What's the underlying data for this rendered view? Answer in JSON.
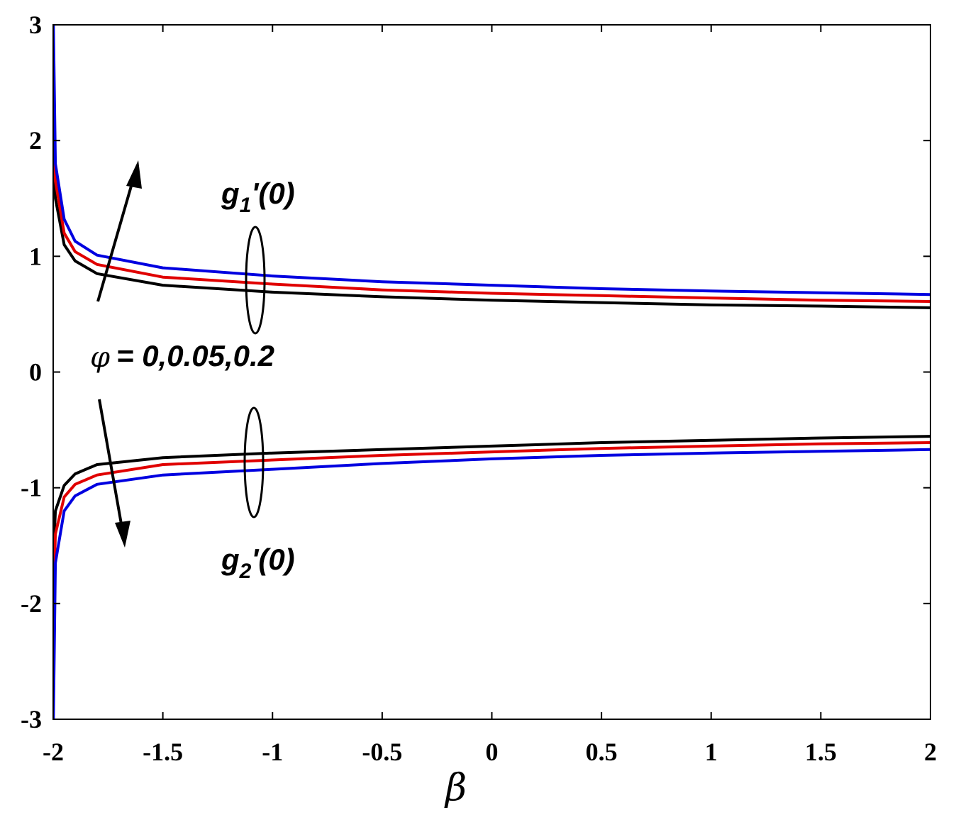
{
  "chart_data": {
    "type": "line",
    "xlabel": "β",
    "ylabel": "",
    "xlim": [
      -2,
      2
    ],
    "ylim": [
      -3,
      3
    ],
    "x_ticks": [
      "-2",
      "-1.5",
      "-1",
      "-0.5",
      "0",
      "0.5",
      "1",
      "1.5",
      "2"
    ],
    "y_ticks": [
      "-3",
      "-2",
      "-1",
      "0",
      "1",
      "2",
      "3"
    ],
    "grid": false,
    "legend": "none",
    "annotations": {
      "upper_group": "g1'(0)",
      "lower_group": "g2'(0)",
      "phi_symbol": "φ",
      "phi_values": "= 0,0.05,0.2"
    },
    "series": [
      {
        "color": "#000000",
        "x": [
          -1.999,
          -1.99,
          -1.95,
          -1.9,
          -1.8,
          -1.5,
          -1,
          -0.5,
          0,
          0.5,
          1,
          1.5,
          2
        ],
        "y": [
          2.4,
          1.5,
          1.1,
          0.96,
          0.85,
          0.75,
          0.69,
          0.65,
          0.62,
          0.6,
          0.58,
          0.57,
          0.555
        ]
      },
      {
        "color": "#e00000",
        "x": [
          -1.999,
          -1.99,
          -1.95,
          -1.9,
          -1.8,
          -1.5,
          -1,
          -0.5,
          0,
          0.5,
          1,
          1.5,
          2
        ],
        "y": [
          2.6,
          1.65,
          1.2,
          1.04,
          0.93,
          0.82,
          0.76,
          0.71,
          0.68,
          0.66,
          0.64,
          0.62,
          0.61
        ]
      },
      {
        "color": "#0000e0",
        "x": [
          -1.999,
          -1.99,
          -1.95,
          -1.9,
          -1.8,
          -1.5,
          -1,
          -0.5,
          0,
          0.5,
          1,
          1.5,
          2
        ],
        "y": [
          3.0,
          1.8,
          1.32,
          1.13,
          1.01,
          0.9,
          0.83,
          0.78,
          0.75,
          0.72,
          0.7,
          0.685,
          0.67
        ]
      },
      {
        "color": "#000000",
        "x": [
          -1.999,
          -1.99,
          -1.95,
          -1.9,
          -1.8,
          -1.5,
          -1,
          -0.5,
          0,
          0.5,
          1,
          1.5,
          2
        ],
        "y": [
          -1.6,
          -1.2,
          -0.98,
          -0.88,
          -0.8,
          -0.74,
          -0.7,
          -0.67,
          -0.64,
          -0.61,
          -0.59,
          -0.57,
          -0.555
        ]
      },
      {
        "color": "#e00000",
        "x": [
          -1.999,
          -1.99,
          -1.95,
          -1.9,
          -1.8,
          -1.5,
          -1,
          -0.5,
          0,
          0.5,
          1,
          1.5,
          2
        ],
        "y": [
          -2.0,
          -1.4,
          -1.08,
          -0.97,
          -0.89,
          -0.8,
          -0.76,
          -0.72,
          -0.69,
          -0.66,
          -0.64,
          -0.62,
          -0.61
        ]
      },
      {
        "color": "#0000e0",
        "x": [
          -1.999,
          -1.99,
          -1.95,
          -1.9,
          -1.8,
          -1.5,
          -1,
          -0.5,
          0,
          0.5,
          1,
          1.5,
          2
        ],
        "y": [
          -3.0,
          -1.65,
          -1.2,
          -1.07,
          -0.97,
          -0.89,
          -0.84,
          -0.79,
          -0.75,
          -0.72,
          -0.7,
          -0.685,
          -0.67
        ]
      }
    ]
  }
}
